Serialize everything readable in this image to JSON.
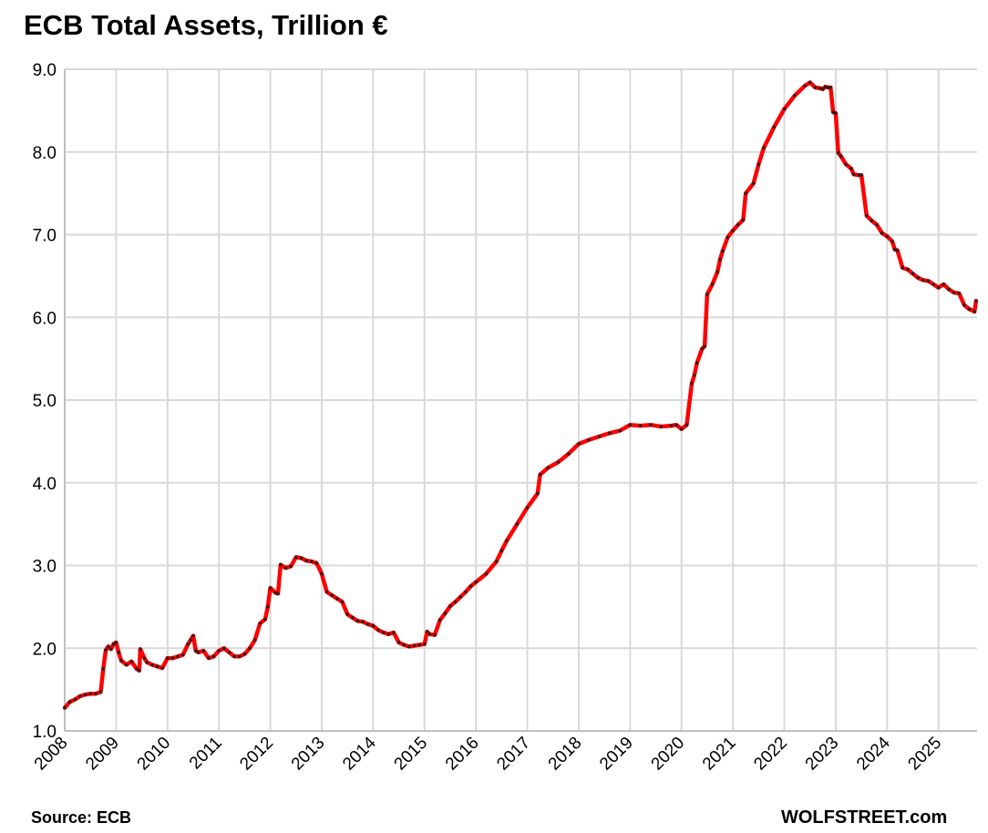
{
  "title": "ECB Total Assets, Trillion €",
  "source": "Source: ECB",
  "brand": "WOLFSTREET.com",
  "colors": {
    "line": "#ff0000",
    "markers": "#3a1a1a",
    "grid": "#d9d9d9"
  },
  "chart_data": {
    "type": "line",
    "title": "ECB Total Assets, Trillion €",
    "xlabel": "",
    "ylabel": "",
    "xlim": [
      2008.0,
      2025.75
    ],
    "ylim": [
      1.0,
      9.0
    ],
    "y_ticks": [
      "1.0",
      "2.0",
      "3.0",
      "4.0",
      "5.0",
      "6.0",
      "7.0",
      "8.0",
      "9.0"
    ],
    "x_ticks": [
      "2008",
      "2009",
      "2010",
      "2011",
      "2012",
      "2013",
      "2014",
      "2015",
      "2016",
      "2017",
      "2018",
      "2019",
      "2020",
      "2021",
      "2022",
      "2023",
      "2024",
      "2025"
    ],
    "grid": true,
    "legend": "none",
    "series": [
      {
        "x": [
          2008.0,
          2008.1,
          2008.2,
          2008.3,
          2008.4,
          2008.5,
          2008.6,
          2008.7,
          2008.75,
          2008.8,
          2008.85,
          2008.9,
          2008.95,
          2009.0,
          2009.05,
          2009.1,
          2009.2,
          2009.3,
          2009.4,
          2009.45,
          2009.47,
          2009.55,
          2009.6,
          2009.7,
          2009.8,
          2009.9,
          2010.0,
          2010.1,
          2010.2,
          2010.3,
          2010.4,
          2010.45,
          2010.5,
          2010.55,
          2010.6,
          2010.7,
          2010.8,
          2010.9,
          2011.0,
          2011.1,
          2011.2,
          2011.3,
          2011.4,
          2011.5,
          2011.6,
          2011.7,
          2011.8,
          2011.9,
          2011.95,
          2012.0,
          2012.1,
          2012.15,
          2012.2,
          2012.3,
          2012.4,
          2012.5,
          2012.6,
          2012.7,
          2012.8,
          2012.9,
          2013.0,
          2013.1,
          2013.2,
          2013.3,
          2013.4,
          2013.5,
          2013.6,
          2013.7,
          2013.8,
          2013.9,
          2014.0,
          2014.1,
          2014.2,
          2014.3,
          2014.4,
          2014.5,
          2014.6,
          2014.7,
          2014.8,
          2014.9,
          2015.0,
          2015.05,
          2015.1,
          2015.2,
          2015.3,
          2015.4,
          2015.5,
          2015.6,
          2015.7,
          2015.8,
          2015.9,
          2016.0,
          2016.2,
          2016.4,
          2016.5,
          2016.6,
          2016.8,
          2017.0,
          2017.2,
          2017.25,
          2017.4,
          2017.6,
          2017.8,
          2018.0,
          2018.2,
          2018.4,
          2018.6,
          2018.8,
          2019.0,
          2019.2,
          2019.4,
          2019.6,
          2019.8,
          2019.9,
          2020.0,
          2020.1,
          2020.2,
          2020.25,
          2020.3,
          2020.4,
          2020.45,
          2020.5,
          2020.6,
          2020.7,
          2020.75,
          2020.8,
          2020.9,
          2021.0,
          2021.1,
          2021.2,
          2021.25,
          2021.4,
          2021.5,
          2021.6,
          2021.8,
          2022.0,
          2022.2,
          2022.4,
          2022.5,
          2022.6,
          2022.7,
          2022.75,
          2022.8,
          2022.85,
          2022.9,
          2022.95,
          2023.0,
          2023.05,
          2023.1,
          2023.2,
          2023.3,
          2023.35,
          2023.45,
          2023.5,
          2023.6,
          2023.7,
          2023.8,
          2023.9,
          2024.0,
          2024.1,
          2024.15,
          2024.2,
          2024.3,
          2024.4,
          2024.5,
          2024.6,
          2024.7,
          2024.8,
          2024.9,
          2025.0,
          2025.1,
          2025.2,
          2025.3,
          2025.4,
          2025.5,
          2025.6,
          2025.7,
          2025.73
        ],
        "y": [
          1.28,
          1.35,
          1.38,
          1.42,
          1.44,
          1.45,
          1.45,
          1.47,
          1.75,
          1.98,
          2.02,
          1.99,
          2.05,
          2.07,
          1.95,
          1.85,
          1.8,
          1.84,
          1.75,
          1.73,
          1.99,
          1.88,
          1.83,
          1.8,
          1.78,
          1.76,
          1.88,
          1.88,
          1.9,
          1.92,
          2.05,
          2.1,
          2.15,
          1.97,
          1.95,
          1.97,
          1.88,
          1.9,
          1.97,
          2.0,
          1.95,
          1.9,
          1.9,
          1.93,
          2.0,
          2.1,
          2.3,
          2.35,
          2.5,
          2.73,
          2.67,
          2.66,
          3.01,
          2.97,
          2.99,
          3.1,
          3.09,
          3.06,
          3.05,
          3.03,
          2.9,
          2.68,
          2.64,
          2.6,
          2.56,
          2.41,
          2.37,
          2.33,
          2.32,
          2.29,
          2.27,
          2.22,
          2.19,
          2.17,
          2.19,
          2.07,
          2.04,
          2.02,
          2.03,
          2.04,
          2.05,
          2.2,
          2.17,
          2.16,
          2.34,
          2.42,
          2.51,
          2.56,
          2.62,
          2.68,
          2.75,
          2.8,
          2.9,
          3.05,
          3.18,
          3.3,
          3.5,
          3.7,
          3.87,
          4.1,
          4.18,
          4.25,
          4.35,
          4.47,
          4.52,
          4.56,
          4.6,
          4.63,
          4.7,
          4.69,
          4.7,
          4.68,
          4.69,
          4.7,
          4.65,
          4.7,
          5.2,
          5.3,
          5.45,
          5.62,
          5.65,
          6.28,
          6.4,
          6.55,
          6.7,
          6.8,
          6.97,
          7.05,
          7.12,
          7.18,
          7.5,
          7.62,
          7.85,
          8.05,
          8.3,
          8.52,
          8.68,
          8.8,
          8.84,
          8.78,
          8.77,
          8.76,
          8.79,
          8.78,
          8.78,
          8.48,
          8.47,
          7.99,
          7.95,
          7.85,
          7.8,
          7.73,
          7.72,
          7.72,
          7.23,
          7.17,
          7.12,
          7.02,
          6.98,
          6.92,
          6.82,
          6.81,
          6.6,
          6.58,
          6.53,
          6.48,
          6.45,
          6.44,
          6.4,
          6.36,
          6.4,
          6.34,
          6.3,
          6.29,
          6.15,
          6.1,
          6.07,
          6.2
        ]
      }
    ]
  }
}
